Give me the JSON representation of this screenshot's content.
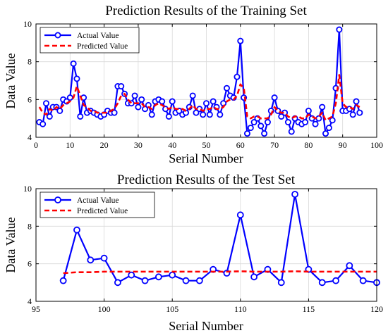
{
  "chart_data": [
    {
      "type": "line",
      "title": "Prediction Results of the Training Set",
      "xlabel": "Serial Number",
      "ylabel": "Data Value",
      "xlim": [
        0,
        100
      ],
      "ylim": [
        4,
        10
      ],
      "xticks": [
        0,
        10,
        20,
        30,
        40,
        50,
        60,
        70,
        80,
        90,
        100
      ],
      "yticks": [
        4,
        6,
        8,
        10
      ],
      "grid": true,
      "legend": "top-left",
      "series": [
        {
          "name": "Actual Value",
          "color": "#0000ff",
          "style": "solid-circle-markers",
          "x": [
            1,
            2,
            3,
            4,
            5,
            6,
            7,
            8,
            9,
            10,
            11,
            12,
            13,
            14,
            15,
            16,
            17,
            18,
            19,
            20,
            21,
            22,
            23,
            24,
            25,
            26,
            27,
            28,
            29,
            30,
            31,
            32,
            33,
            34,
            35,
            36,
            37,
            38,
            39,
            40,
            41,
            42,
            43,
            44,
            45,
            46,
            47,
            48,
            49,
            50,
            51,
            52,
            53,
            54,
            55,
            56,
            57,
            58,
            59,
            60,
            61,
            62,
            63,
            64,
            65,
            66,
            67,
            68,
            69,
            70,
            71,
            72,
            73,
            74,
            75,
            76,
            77,
            78,
            79,
            80,
            81,
            82,
            83,
            84,
            85,
            86,
            87,
            88,
            89,
            90,
            91,
            92,
            93,
            94,
            95
          ],
          "values": [
            4.8,
            4.7,
            5.8,
            5.1,
            5.6,
            5.6,
            5.4,
            6.0,
            5.9,
            6.1,
            7.9,
            7.1,
            5.1,
            6.1,
            5.3,
            5.4,
            5.3,
            5.2,
            5.1,
            5.2,
            5.4,
            5.3,
            5.3,
            6.7,
            6.7,
            6.3,
            5.8,
            5.8,
            6.2,
            5.6,
            6.0,
            5.5,
            5.7,
            5.2,
            5.9,
            6.0,
            5.9,
            5.5,
            5.1,
            5.9,
            5.3,
            5.4,
            5.2,
            5.3,
            5.6,
            6.2,
            5.3,
            5.5,
            5.2,
            5.8,
            5.2,
            5.9,
            5.6,
            5.2,
            5.8,
            6.6,
            6.2,
            6.1,
            7.2,
            9.1,
            6.1,
            4.2,
            4.5,
            4.8,
            5.0,
            4.6,
            4.2,
            4.8,
            5.4,
            6.1,
            5.4,
            5.1,
            5.3,
            4.8,
            4.3,
            5.0,
            4.8,
            4.7,
            4.8,
            5.4,
            5.0,
            4.7,
            5.0,
            5.6,
            4.2,
            4.5,
            4.9,
            6.6,
            9.7,
            5.4,
            5.4,
            5.5,
            5.2,
            5.9,
            5.3
          ]
        },
        {
          "name": "Predicted Value",
          "color": "#ff0000",
          "style": "dashed",
          "x": [
            1,
            2,
            3,
            4,
            5,
            6,
            7,
            8,
            9,
            10,
            11,
            12,
            13,
            14,
            15,
            16,
            17,
            18,
            19,
            20,
            21,
            22,
            23,
            24,
            25,
            26,
            27,
            28,
            29,
            30,
            31,
            32,
            33,
            34,
            35,
            36,
            37,
            38,
            39,
            40,
            41,
            42,
            43,
            44,
            45,
            46,
            47,
            48,
            49,
            50,
            51,
            52,
            53,
            54,
            55,
            56,
            57,
            58,
            59,
            60,
            61,
            62,
            63,
            64,
            65,
            66,
            67,
            68,
            69,
            70,
            71,
            72,
            73,
            74,
            75,
            76,
            77,
            78,
            79,
            80,
            81,
            82,
            83,
            84,
            85,
            86,
            87,
            88,
            89,
            90,
            91,
            92,
            93,
            94,
            95
          ],
          "values": [
            5.6,
            5.3,
            5.2,
            5.5,
            5.4,
            5.6,
            5.5,
            5.7,
            5.8,
            5.9,
            6.1,
            6.7,
            6.2,
            5.7,
            5.6,
            5.4,
            5.4,
            5.3,
            5.3,
            5.3,
            5.3,
            5.4,
            5.5,
            5.8,
            6.2,
            6.3,
            6.0,
            5.8,
            5.8,
            5.8,
            5.8,
            5.6,
            5.6,
            5.5,
            5.7,
            5.8,
            5.7,
            5.6,
            5.5,
            5.6,
            5.5,
            5.5,
            5.5,
            5.4,
            5.5,
            5.7,
            5.5,
            5.5,
            5.4,
            5.5,
            5.5,
            5.6,
            5.5,
            5.5,
            5.6,
            5.9,
            6.0,
            6.0,
            6.2,
            6.8,
            6.6,
            5.1,
            5.0,
            5.1,
            5.1,
            5.0,
            5.0,
            5.0,
            5.2,
            5.6,
            5.4,
            5.3,
            5.3,
            5.1,
            5.0,
            5.1,
            5.1,
            5.0,
            5.0,
            5.2,
            5.1,
            5.0,
            5.1,
            5.3,
            4.9,
            5.0,
            5.1,
            5.8,
            7.3,
            5.8,
            5.6,
            5.6,
            5.5,
            5.7,
            5.6
          ]
        }
      ]
    },
    {
      "type": "line",
      "title": "Prediction Results of the Test Set",
      "xlabel": "Serial Number",
      "ylabel": "Data Value",
      "xlim": [
        95,
        120
      ],
      "ylim": [
        4,
        10
      ],
      "xticks": [
        95,
        100,
        105,
        110,
        115,
        120
      ],
      "yticks": [
        4,
        6,
        8,
        10
      ],
      "grid": true,
      "legend": "top-left",
      "series": [
        {
          "name": "Actual Value",
          "color": "#0000ff",
          "style": "solid-circle-markers",
          "x": [
            97,
            98,
            99,
            100,
            101,
            102,
            103,
            104,
            105,
            106,
            107,
            108,
            109,
            110,
            111,
            112,
            113,
            114,
            115,
            116,
            117,
            118,
            119,
            120
          ],
          "values": [
            5.1,
            7.8,
            6.2,
            6.3,
            5.0,
            5.4,
            5.1,
            5.3,
            5.4,
            5.1,
            5.1,
            5.7,
            5.5,
            8.6,
            5.3,
            5.7,
            5.0,
            9.7,
            5.7,
            5.0,
            5.1,
            5.9,
            5.1,
            5.0
          ]
        },
        {
          "name": "Predicted Value",
          "color": "#ff0000",
          "style": "dashed",
          "x": [
            97,
            98,
            99,
            100,
            101,
            102,
            103,
            104,
            105,
            106,
            107,
            108,
            109,
            110,
            111,
            112,
            113,
            114,
            115,
            116,
            117,
            118,
            119,
            120
          ],
          "values": [
            5.5,
            5.55,
            5.55,
            5.58,
            5.58,
            5.58,
            5.58,
            5.58,
            5.58,
            5.58,
            5.58,
            5.58,
            5.58,
            5.6,
            5.58,
            5.58,
            5.58,
            5.6,
            5.58,
            5.58,
            5.58,
            5.58,
            5.58,
            5.58
          ]
        }
      ]
    }
  ]
}
